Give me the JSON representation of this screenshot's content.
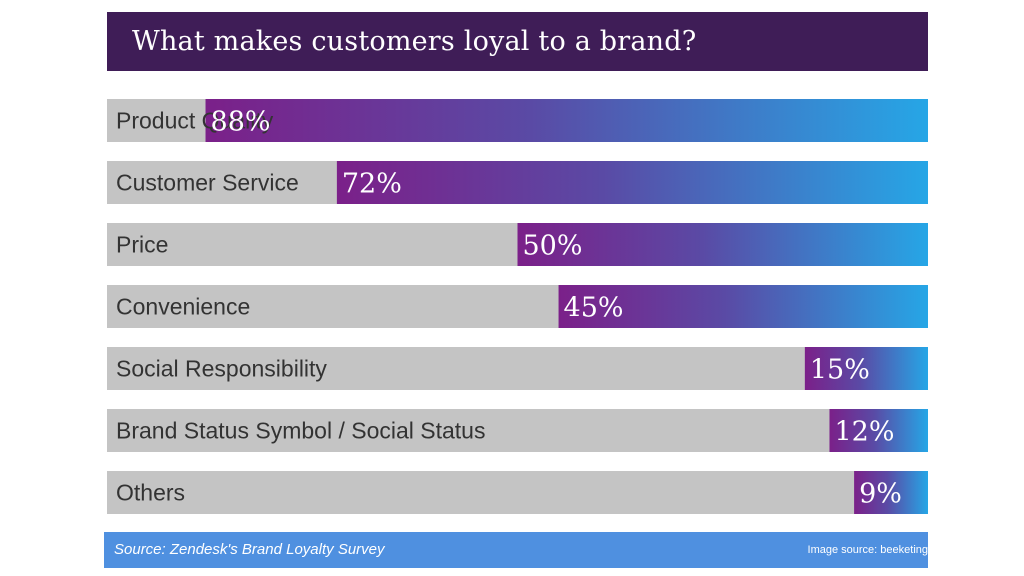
{
  "chart_data": {
    "type": "bar",
    "title": "What makes customers loyal to a brand?",
    "categories": [
      "Product Quality",
      "Customer Service",
      "Price",
      "Convenience",
      "Social Responsibility",
      "Brand Status Symbol / Social Status",
      "Others"
    ],
    "values": [
      88,
      72,
      50,
      45,
      15,
      12,
      9
    ],
    "value_labels": [
      "88%",
      "72%",
      "50%",
      "45%",
      "15%",
      "12%",
      "9%"
    ],
    "xlim": [
      0,
      100
    ],
    "grid": false,
    "legend": "none",
    "colors": {
      "title_background": "#3f1d57",
      "track": "#c4c4c4",
      "bar_start": "#7b2089",
      "bar_end": "#26a6e6",
      "footer_background": "#4f90e0"
    }
  },
  "footer": {
    "source": "Source: Zendesk's Brand Loyalty Survey",
    "credit": "Image source: beeketing"
  }
}
